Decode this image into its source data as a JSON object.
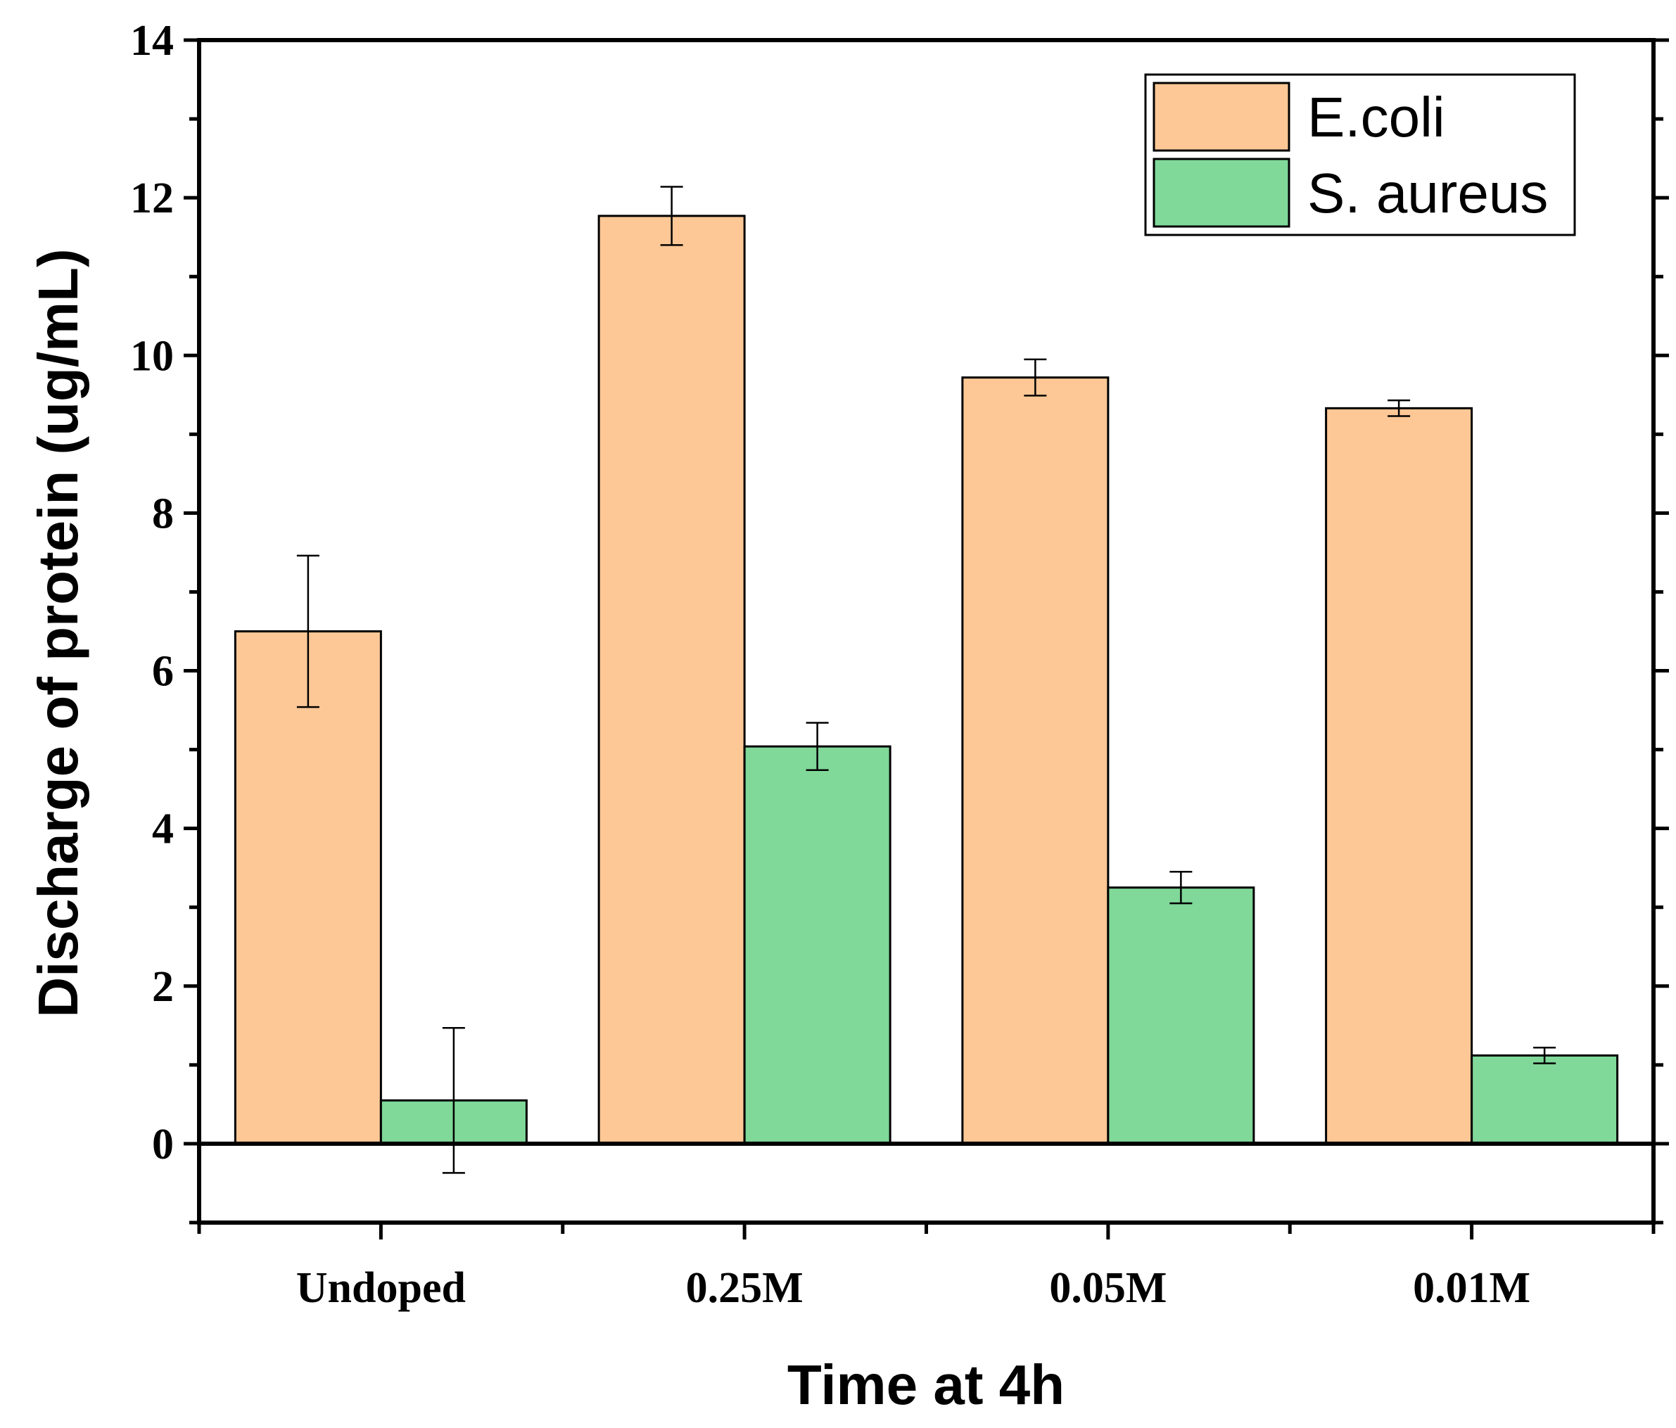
{
  "chart_data": {
    "type": "bar",
    "title": "",
    "xlabel": "Time at 4h",
    "ylabel": "Discharge of protein (ug/mL)",
    "ylim": [
      -1,
      14
    ],
    "yticks": [
      "0",
      "2",
      "4",
      "6",
      "8",
      "10",
      "12",
      "14"
    ],
    "categories": [
      "Undoped",
      "0.25M",
      "0.05M",
      "0.01M"
    ],
    "series": [
      {
        "name": "E.coli",
        "color": "#FDC896",
        "values": [
          6.5,
          11.77,
          9.72,
          9.33
        ],
        "errors": [
          0.96,
          0.37,
          0.23,
          0.1
        ]
      },
      {
        "name": "S. aureus",
        "color": "#80D899",
        "values": [
          0.55,
          5.04,
          3.25,
          1.12
        ],
        "errors": [
          0.92,
          0.3,
          0.2,
          0.1
        ]
      }
    ],
    "legend_position": "top-right",
    "grid": false
  }
}
